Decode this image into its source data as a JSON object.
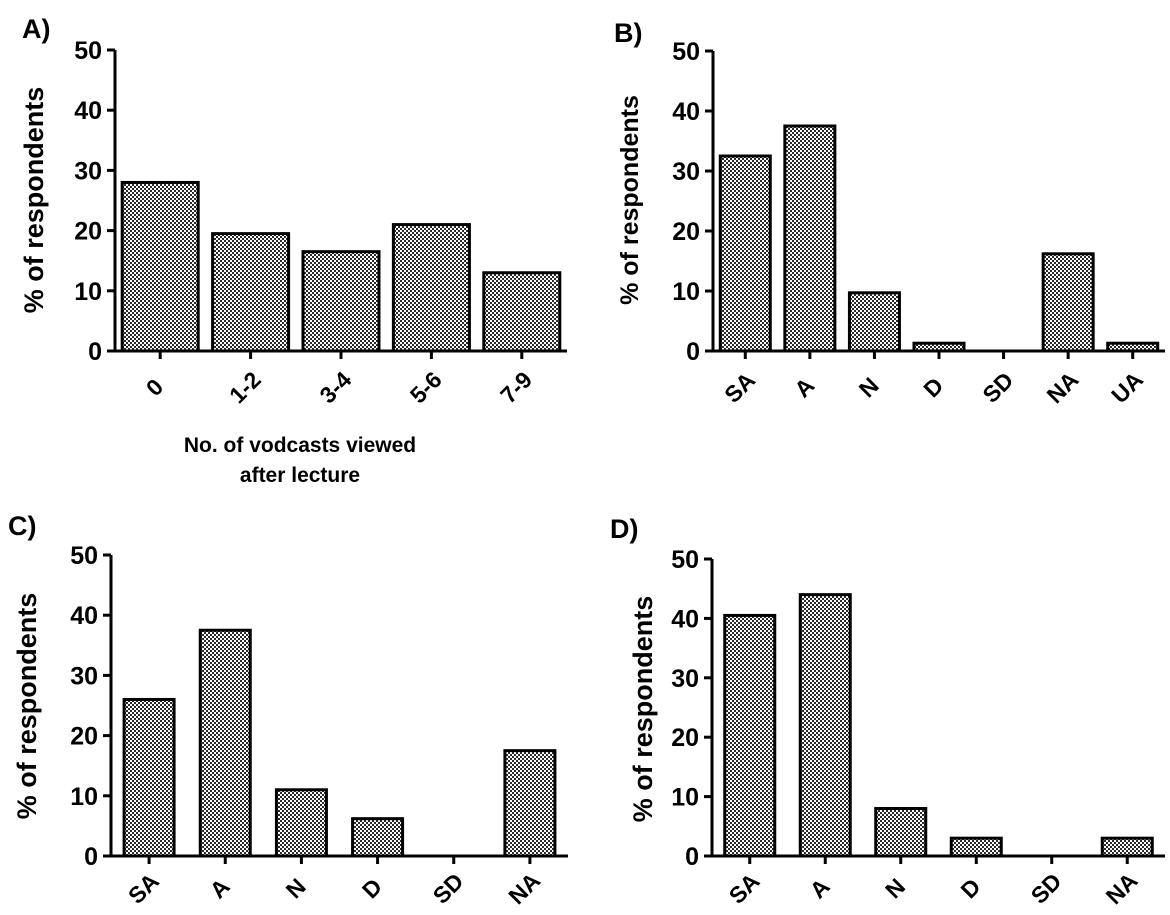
{
  "chart_data": [
    {
      "type": "bar",
      "panel": "A)",
      "categories": [
        "0",
        "1-2",
        "3-4",
        "5-6",
        "7-9"
      ],
      "values": [
        28,
        19.5,
        16.5,
        21,
        13
      ],
      "xlabel": [
        "No. of vodcasts viewed",
        "after lecture"
      ],
      "ylabel": "% of respondents",
      "ylim": [
        0,
        50
      ],
      "yticks": [
        "0",
        "10",
        "20",
        "30",
        "40",
        "50"
      ],
      "grid": false,
      "bar_pattern": "crosshatch"
    },
    {
      "type": "bar",
      "panel": "B)",
      "categories": [
        "SA",
        "A",
        "N",
        "D",
        "SD",
        "NA",
        "UA"
      ],
      "values": [
        32.5,
        37.5,
        9.7,
        1.3,
        0,
        16.2,
        1.3
      ],
      "xlabel": "",
      "ylabel": "% of respondents",
      "ylim": [
        0,
        50
      ],
      "yticks": [
        "0",
        "10",
        "20",
        "30",
        "40",
        "50"
      ],
      "grid": false,
      "bar_pattern": "crosshatch"
    },
    {
      "type": "bar",
      "panel": "C)",
      "categories": [
        "SA",
        "A",
        "N",
        "D",
        "SD",
        "NA"
      ],
      "values": [
        26,
        37.5,
        11,
        6.2,
        0,
        17.5
      ],
      "xlabel": "",
      "ylabel": "% of respondents",
      "ylim": [
        0,
        50
      ],
      "yticks": [
        "0",
        "10",
        "20",
        "30",
        "40",
        "50"
      ],
      "grid": false,
      "bar_pattern": "crosshatch"
    },
    {
      "type": "bar",
      "panel": "D)",
      "categories": [
        "SA",
        "A",
        "N",
        "D",
        "SD",
        "NA"
      ],
      "values": [
        40.5,
        44,
        8,
        3,
        0,
        3
      ],
      "xlabel": "",
      "ylabel": "% of respondents",
      "ylim": [
        0,
        50
      ],
      "yticks": [
        "0",
        "10",
        "20",
        "30",
        "40",
        "50"
      ],
      "grid": false,
      "bar_pattern": "crosshatch"
    }
  ]
}
